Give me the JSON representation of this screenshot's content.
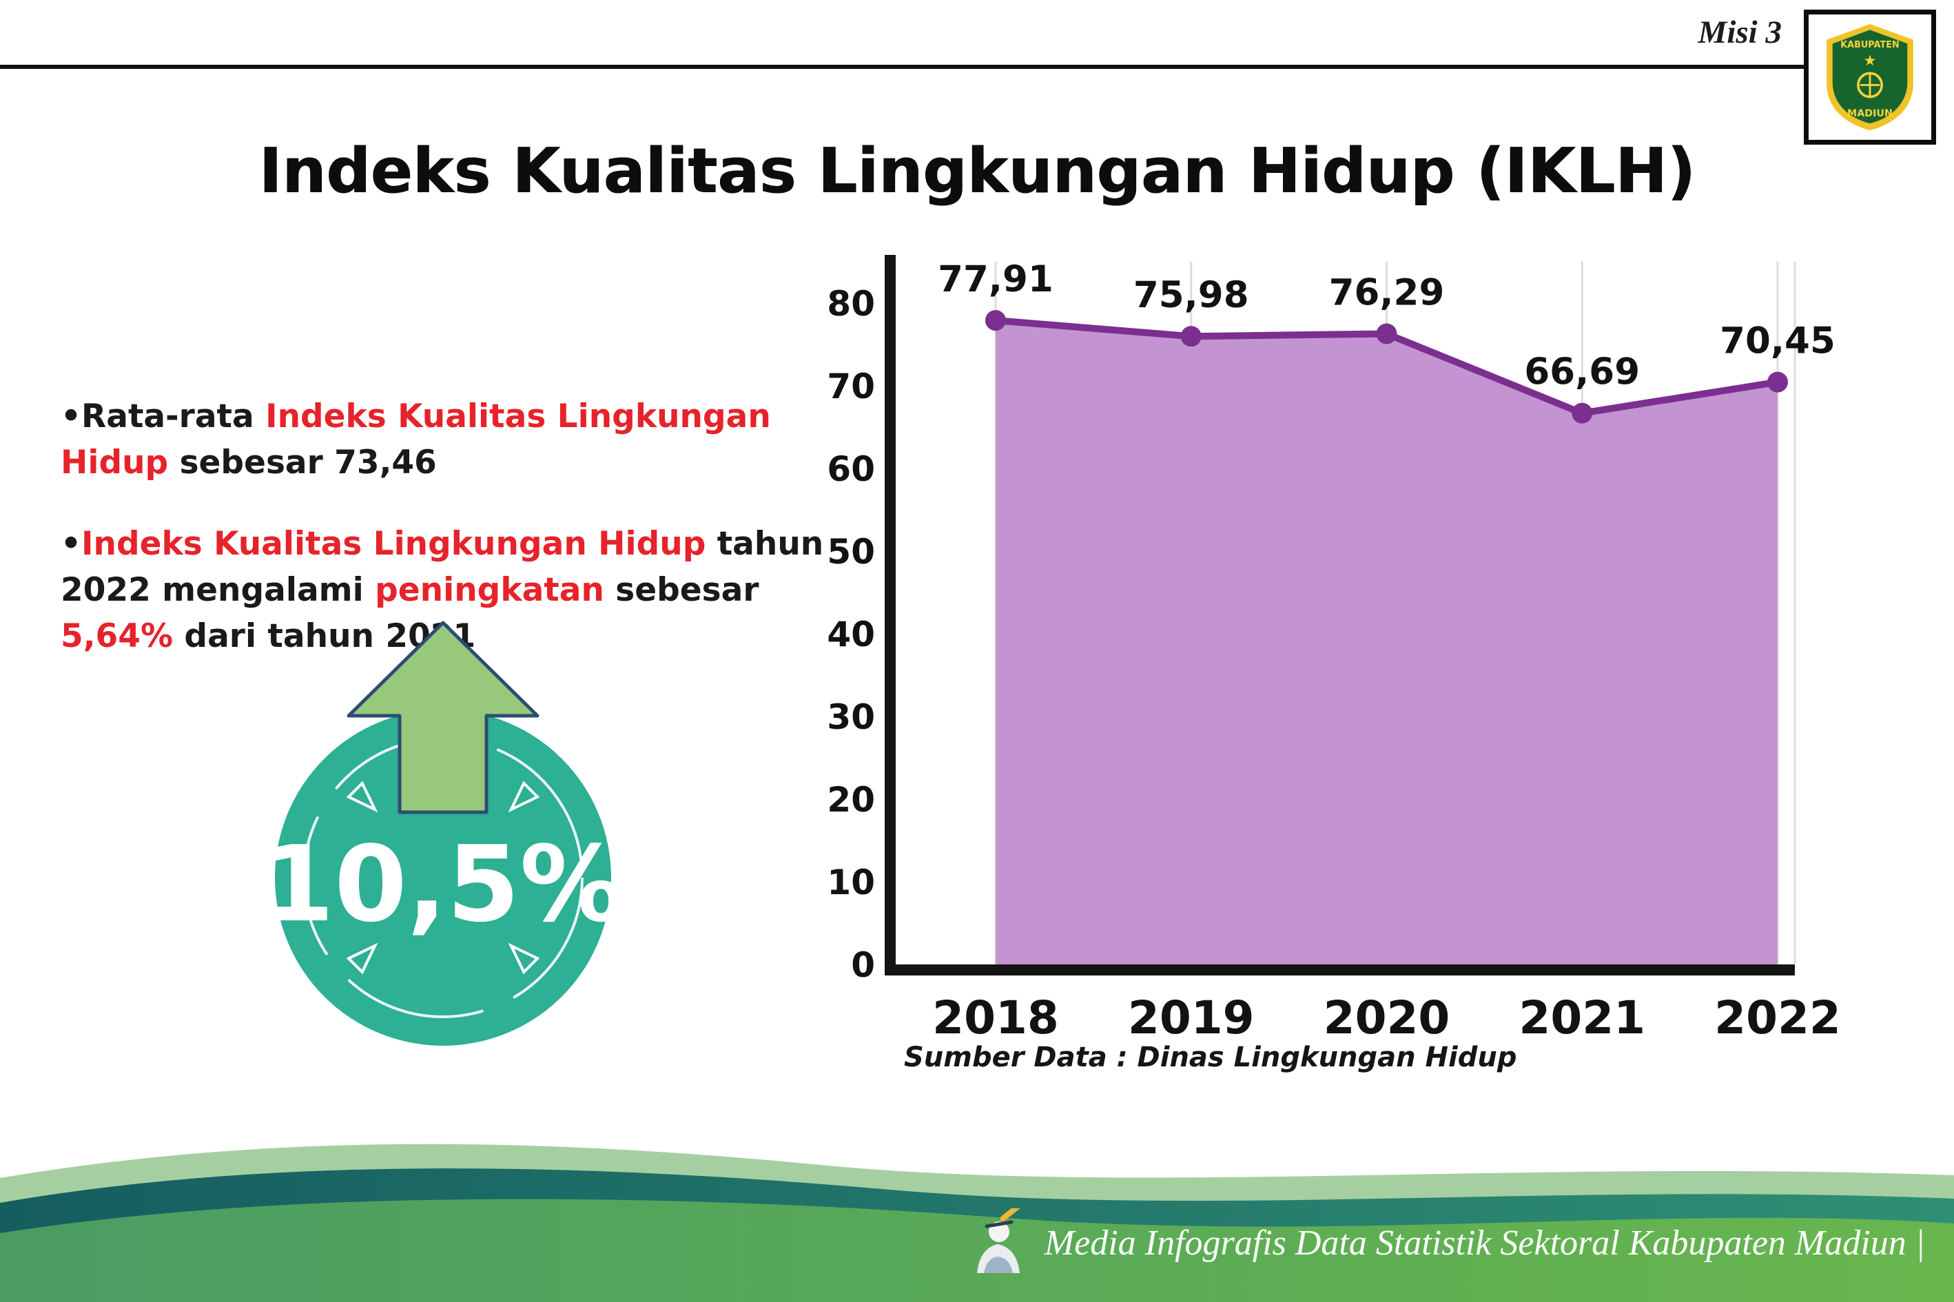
{
  "colors": {
    "red": "#e6232b",
    "ink": "#1a1a1a",
    "teal_circle": "#2db093",
    "arrow_green": "#97c87c",
    "footer_text": "#ffffff"
  },
  "header": {
    "misi_label": "Misi 3",
    "title": "Indeks Kualitas Lingkungan Hidup (IKLH)",
    "logo": {
      "top_text": "KABUPATEN",
      "bottom_text": "MADIUN"
    }
  },
  "bullets": [
    {
      "parts": [
        {
          "text": "•Rata-rata ",
          "color": "ink"
        },
        {
          "text": "Indeks Kualitas Lingkungan Hidup",
          "color": "red"
        },
        {
          "text": " sebesar 73,46",
          "color": "ink"
        }
      ]
    },
    {
      "parts": [
        {
          "text": "•",
          "color": "ink"
        },
        {
          "text": "Indeks Kualitas Lingkungan Hidup",
          "color": "red"
        },
        {
          "text": " tahun 2022 mengalami ",
          "color": "ink"
        },
        {
          "text": "peningkatan",
          "color": "red"
        },
        {
          "text": " sebesar ",
          "color": "ink"
        },
        {
          "text": "5,64%",
          "color": "red"
        },
        {
          "text": " dari tahun 2021",
          "color": "ink"
        }
      ]
    }
  ],
  "highlight": {
    "value": "10,5%"
  },
  "chart_data": {
    "type": "area",
    "title": "Indeks Kualitas Lingkungan Hidup (IKLH)",
    "categories": [
      "2018",
      "2019",
      "2020",
      "2021",
      "2022"
    ],
    "values": [
      77.91,
      75.98,
      76.29,
      66.69,
      70.45
    ],
    "data_labels": [
      "77,91",
      "75,98",
      "76,29",
      "66,69",
      "70,45"
    ],
    "xlabel": "",
    "ylabel": "",
    "ylim": [
      0,
      80
    ],
    "yticks": [
      0,
      10,
      20,
      30,
      40,
      50,
      60,
      70,
      80
    ],
    "grid": "vertical-light",
    "legend": "none",
    "line_color": "#7b2f8e",
    "marker_color": "#7b2f8e",
    "fill_color": "#c494d2",
    "source": "Sumber Data : Dinas Lingkungan Hidup"
  },
  "footer": {
    "credit": "Media Infografis Data Statistik Sektoral Kabupaten Madiun |"
  }
}
